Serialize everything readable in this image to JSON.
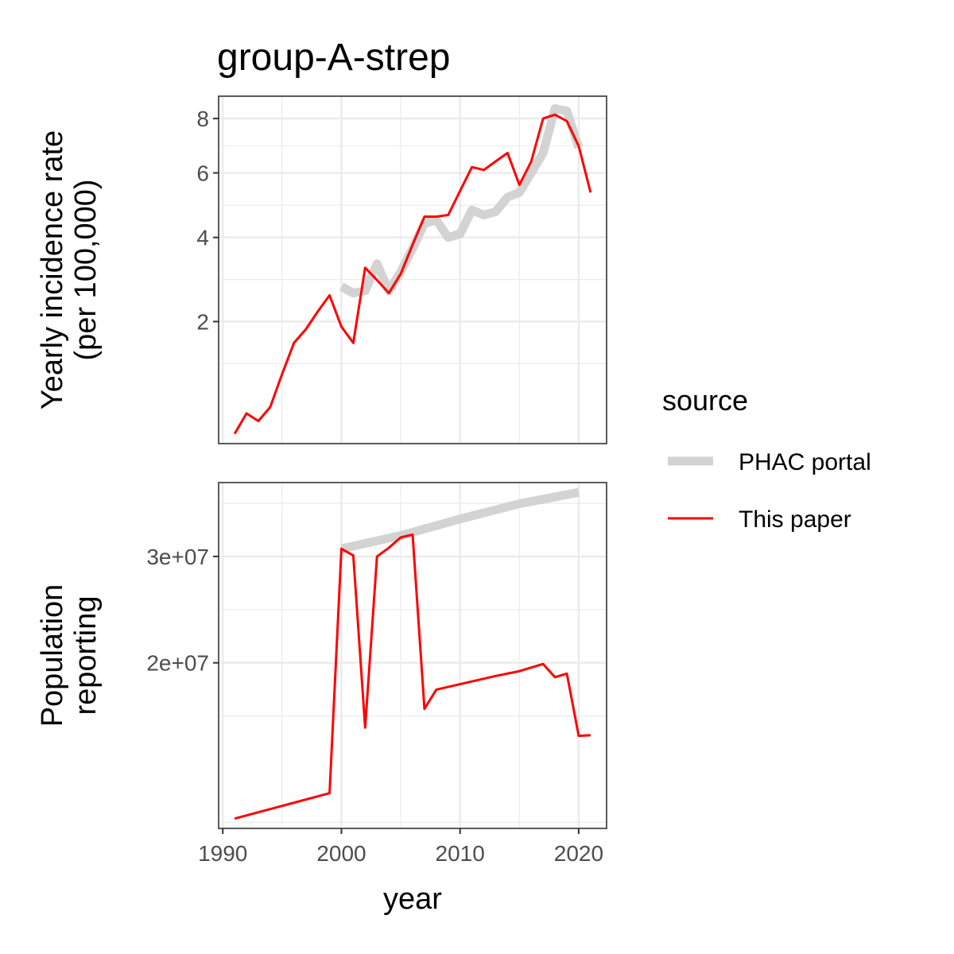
{
  "chart_data": {
    "type": "line",
    "title": "group-A-strep",
    "xlabel": "year",
    "x_ticks": [
      1990,
      2000,
      2010,
      2020
    ],
    "legend": {
      "title": "source",
      "position": "right",
      "entries": [
        {
          "name": "PHAC portal",
          "color": "#d3d3d3"
        },
        {
          "name": "This paper",
          "color": "#ff0000"
        }
      ]
    },
    "panels": [
      {
        "ylabel_lines": [
          "Yearly incidence rate",
          "(per 100,000)"
        ],
        "y_scale": "sqrt",
        "ylim": [
          0.4,
          8.5
        ],
        "y_ticks": [
          2,
          4,
          6,
          8
        ],
        "y_tick_labels": [
          "2",
          "4",
          "6",
          "8"
        ],
        "grid": true,
        "series": [
          {
            "name": "PHAC portal",
            "color": "#d3d3d3",
            "x": [
              2000,
              2001,
              2002,
              2003,
              2004,
              2005,
              2006,
              2007,
              2008,
              2009,
              2010,
              2011,
              2012,
              2013,
              2014,
              2015,
              2016,
              2017,
              2018,
              2019,
              2020
            ],
            "y": [
              2.75,
              2.6,
              2.65,
              3.3,
              2.65,
              3.1,
              3.7,
              4.4,
              4.5,
              4.0,
              4.1,
              4.8,
              4.65,
              4.75,
              5.2,
              5.35,
              6.0,
              6.7,
              8.4,
              8.3,
              6.9
            ]
          },
          {
            "name": "This paper",
            "color": "#ff0000",
            "x": [
              1991,
              1992,
              1993,
              1994,
              1995,
              1996,
              1997,
              1998,
              1999,
              2000,
              2001,
              2002,
              2003,
              2004,
              2005,
              2006,
              2007,
              2008,
              2009,
              2010,
              2011,
              2012,
              2013,
              2014,
              2015,
              2016,
              2017,
              2018,
              2019,
              2020,
              2021
            ],
            "y": [
              0.4,
              0.6,
              0.52,
              0.67,
              1.1,
              1.6,
              1.85,
              2.2,
              2.55,
              1.9,
              1.6,
              3.2,
              2.9,
              2.6,
              3.05,
              3.8,
              4.6,
              4.6,
              4.65,
              5.4,
              6.2,
              6.1,
              6.4,
              6.7,
              5.6,
              6.4,
              8.0,
              8.15,
              7.9,
              6.95,
              5.35
            ]
          }
        ]
      },
      {
        "ylabel_lines": [
          "Population",
          "reporting"
        ],
        "y_scale": "sqrt",
        "ylim": [
          9000000,
          37000000
        ],
        "y_ticks": [
          20000000,
          30000000
        ],
        "y_tick_labels": [
          "2e+07",
          "3e+07"
        ],
        "grid": true,
        "series": [
          {
            "name": "PHAC portal",
            "color": "#d3d3d3",
            "x": [
              2000,
              2005,
              2010,
              2015,
              2020
            ],
            "y": [
              30800000,
              32200000,
              34000000,
              35700000,
              37000000
            ]
          },
          {
            "name": "This paper",
            "color": "#ff0000",
            "x": [
              1991,
              1999,
              2000,
              2001,
              2002,
              2003,
              2004,
              2005,
              2006,
              2007,
              2008,
              2013,
              2015,
              2017,
              2018,
              2019,
              2020,
              2021
            ],
            "y": [
              9000000,
              10500000,
              30800000,
              30100000,
              14900000,
              30000000,
              30900000,
              32000000,
              32300000,
              16300000,
              17800000,
              18900000,
              19300000,
              19900000,
              18800000,
              19100000,
              14300000,
              14350000
            ]
          }
        ]
      }
    ]
  }
}
